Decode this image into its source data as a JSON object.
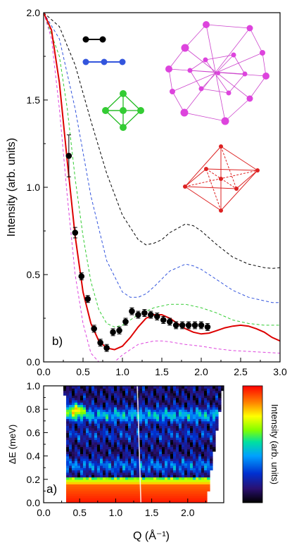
{
  "chart_data": [
    {
      "panel": "b)",
      "type": "line",
      "xlabel": "",
      "ylabel": "Intensity (arb. units)",
      "xlim": [
        0.0,
        3.0
      ],
      "ylim": [
        0.0,
        2.0
      ],
      "xticks": [
        "0.0",
        "0.5",
        "1.0",
        "1.5",
        "2.0",
        "2.5",
        "3.0"
      ],
      "yticks": [
        "0.0",
        "0.5",
        "1.0",
        "1.5",
        "2.0"
      ],
      "series": [
        {
          "style": "dashed",
          "color": "#000000",
          "shape": "dimer",
          "x": [
            0.0,
            0.2,
            0.4,
            0.6,
            0.8,
            1.0,
            1.2,
            1.3,
            1.4,
            1.5,
            1.6,
            1.8,
            1.9,
            2.0,
            2.2,
            2.4,
            2.6,
            2.8,
            2.9,
            3.0
          ],
          "y": [
            2.0,
            1.92,
            1.7,
            1.38,
            1.08,
            0.84,
            0.7,
            0.67,
            0.68,
            0.7,
            0.74,
            0.79,
            0.78,
            0.75,
            0.67,
            0.6,
            0.56,
            0.54,
            0.535,
            0.54
          ]
        },
        {
          "style": "dashed",
          "color": "#3355dd",
          "shape": "linear trimer",
          "x": [
            0.0,
            0.2,
            0.4,
            0.6,
            0.8,
            1.0,
            1.1,
            1.2,
            1.3,
            1.4,
            1.6,
            1.8,
            1.9,
            2.0,
            2.2,
            2.4,
            2.6,
            2.8,
            2.9,
            3.0
          ],
          "y": [
            2.0,
            1.85,
            1.45,
            0.95,
            0.58,
            0.4,
            0.37,
            0.37,
            0.39,
            0.43,
            0.52,
            0.56,
            0.55,
            0.53,
            0.47,
            0.41,
            0.37,
            0.35,
            0.34,
            0.34
          ]
        },
        {
          "style": "dashed",
          "color": "#33cc33",
          "shape": "square pyramid",
          "x": [
            0.0,
            0.2,
            0.3,
            0.4,
            0.5,
            0.6,
            0.7,
            0.8,
            0.9,
            1.0,
            1.1,
            1.2,
            1.4,
            1.6,
            1.8,
            2.0,
            2.2,
            2.4,
            2.6,
            2.8,
            3.0
          ],
          "y": [
            2.0,
            1.75,
            1.45,
            1.05,
            0.72,
            0.46,
            0.3,
            0.22,
            0.2,
            0.21,
            0.24,
            0.27,
            0.31,
            0.33,
            0.33,
            0.31,
            0.28,
            0.24,
            0.22,
            0.21,
            0.21
          ]
        },
        {
          "style": "dashed",
          "color": "#dd44dd",
          "shape": "Friauf polyhedron",
          "x": [
            0.0,
            0.1,
            0.2,
            0.3,
            0.4,
            0.5,
            0.6,
            0.7,
            0.8,
            0.9,
            1.0,
            1.1,
            1.2,
            1.3,
            1.4,
            1.5,
            1.6,
            1.8,
            2.0,
            2.2,
            2.4,
            2.6,
            2.8,
            3.0
          ],
          "y": [
            2.0,
            1.85,
            1.45,
            0.95,
            0.5,
            0.22,
            0.05,
            0.0,
            0.0,
            0.0,
            0.04,
            0.07,
            0.1,
            0.11,
            0.12,
            0.12,
            0.115,
            0.1,
            0.09,
            0.075,
            0.065,
            0.06,
            0.055,
            0.05
          ]
        },
        {
          "style": "solid",
          "color": "#dd0000",
          "shape": "octahedron",
          "x": [
            0.0,
            0.1,
            0.2,
            0.3,
            0.4,
            0.5,
            0.6,
            0.7,
            0.8,
            0.9,
            1.0,
            1.1,
            1.2,
            1.3,
            1.4,
            1.5,
            1.6,
            1.7,
            1.8,
            1.9,
            2.0,
            2.1,
            2.2,
            2.3,
            2.4,
            2.5,
            2.6,
            2.7,
            2.8,
            2.9,
            3.0
          ],
          "y": [
            2.0,
            1.9,
            1.6,
            1.15,
            0.72,
            0.4,
            0.22,
            0.12,
            0.08,
            0.07,
            0.09,
            0.14,
            0.2,
            0.25,
            0.27,
            0.27,
            0.25,
            0.22,
            0.19,
            0.17,
            0.16,
            0.165,
            0.18,
            0.195,
            0.205,
            0.21,
            0.205,
            0.19,
            0.17,
            0.14,
            0.12
          ]
        }
      ],
      "points": {
        "marker": "filled-circle",
        "x": [
          0.32,
          0.4,
          0.48,
          0.56,
          0.64,
          0.72,
          0.8,
          0.88,
          0.96,
          1.04,
          1.12,
          1.2,
          1.28,
          1.36,
          1.44,
          1.52,
          1.6,
          1.68,
          1.76,
          1.84,
          1.92,
          2.0,
          2.08
        ],
        "y": [
          1.18,
          0.74,
          0.49,
          0.36,
          0.19,
          0.11,
          0.08,
          0.17,
          0.18,
          0.23,
          0.29,
          0.27,
          0.28,
          0.27,
          0.26,
          0.24,
          0.23,
          0.21,
          0.21,
          0.21,
          0.21,
          0.21,
          0.2
        ],
        "err": [
          0.12,
          0.03,
          0.02,
          0.02,
          0.02,
          0.02,
          0.02,
          0.02,
          0.02,
          0.02,
          0.02,
          0.02,
          0.02,
          0.02,
          0.02,
          0.02,
          0.02,
          0.02,
          0.02,
          0.02,
          0.02,
          0.02,
          0.02
        ]
      }
    },
    {
      "panel": "a)",
      "type": "heatmap",
      "xlabel": "Q (Å⁻¹)",
      "ylabel": "ΔE (meV)",
      "colorbar_label": "Intensity (arb. units)",
      "xlim": [
        0.0,
        2.5
      ],
      "ylim": [
        0.0,
        1.0
      ],
      "xticks": [
        "0.0",
        "0.5",
        "1.0",
        "1.5",
        "2.0"
      ],
      "yticks": [
        "0.0",
        "0.2",
        "0.4",
        "0.6",
        "0.8",
        "1.0"
      ],
      "data_region": {
        "q_min_at_E0": 0.33,
        "q_min_at_E1": 0.29,
        "q_max_at_E0": 2.26,
        "q_max_at_E1": 2.49
      },
      "features": [
        {
          "desc": "elastic band",
          "e_range": [
            0.0,
            0.16
          ],
          "level": "high"
        },
        {
          "desc": "inelastic band",
          "e": 0.75,
          "level": "medium"
        },
        {
          "desc": "low-Q hot spot",
          "q": 0.45,
          "e": 0.8,
          "level": "high"
        }
      ],
      "colormap": [
        "#000000",
        "#2a1070",
        "#0030d0",
        "#00a0ff",
        "#00e0a0",
        "#80ff00",
        "#ffff00",
        "#ff8000",
        "#ff0000"
      ]
    }
  ],
  "labels": {
    "panel_b": "b)",
    "panel_a": "a)"
  }
}
